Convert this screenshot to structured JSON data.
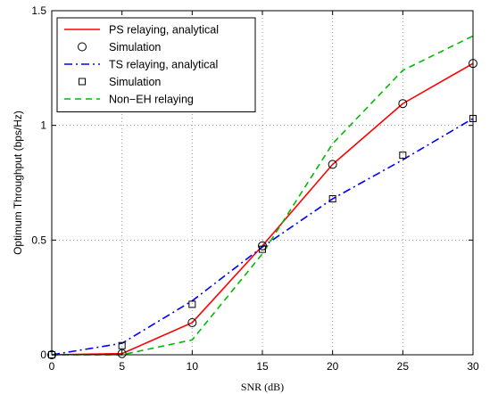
{
  "chart_data": {
    "type": "line",
    "xlabel": "SNR (dB)",
    "ylabel": "Optimum Throughput (bps/Hz)",
    "xlim": [
      0,
      30
    ],
    "ylim": [
      0,
      1.5
    ],
    "xticks": [
      0,
      5,
      10,
      15,
      20,
      25,
      30
    ],
    "yticks": [
      0,
      0.5,
      1,
      1.5
    ],
    "xtick_labels": [
      "0",
      "5",
      "10",
      "15",
      "20",
      "25",
      "30"
    ],
    "ytick_labels": [
      "0",
      "0.5",
      "1",
      "1.5"
    ],
    "grid": true,
    "legend_position": "top-left",
    "x": [
      0,
      5,
      10,
      15,
      20,
      25,
      30
    ],
    "series": [
      {
        "name": "PS relaying, analytical",
        "style": "line",
        "color": "#ff0000",
        "dash": "solid",
        "values": [
          0.0,
          0.005,
          0.14,
          0.475,
          0.83,
          1.095,
          1.27
        ]
      },
      {
        "name": "Simulation",
        "style": "marker",
        "marker": "circle",
        "color": "#000000",
        "values": [
          0.0,
          0.005,
          0.14,
          0.475,
          0.83,
          1.095,
          1.27
        ]
      },
      {
        "name": "TS relaying, analytical",
        "style": "line",
        "color": "#0000ff",
        "dash": "dashdot",
        "values": [
          0.0,
          0.05,
          0.235,
          0.47,
          0.68,
          0.85,
          1.03
        ]
      },
      {
        "name": "Simulation",
        "style": "marker",
        "marker": "square",
        "color": "#000000",
        "values": [
          0.0,
          0.04,
          0.22,
          0.46,
          0.68,
          0.87,
          1.03
        ]
      },
      {
        "name": "Non−EH relaying",
        "style": "line",
        "color": "#00bb00",
        "dash": "dashed",
        "values": [
          0.0,
          0.0,
          0.065,
          0.44,
          0.92,
          1.24,
          1.39
        ]
      }
    ]
  }
}
